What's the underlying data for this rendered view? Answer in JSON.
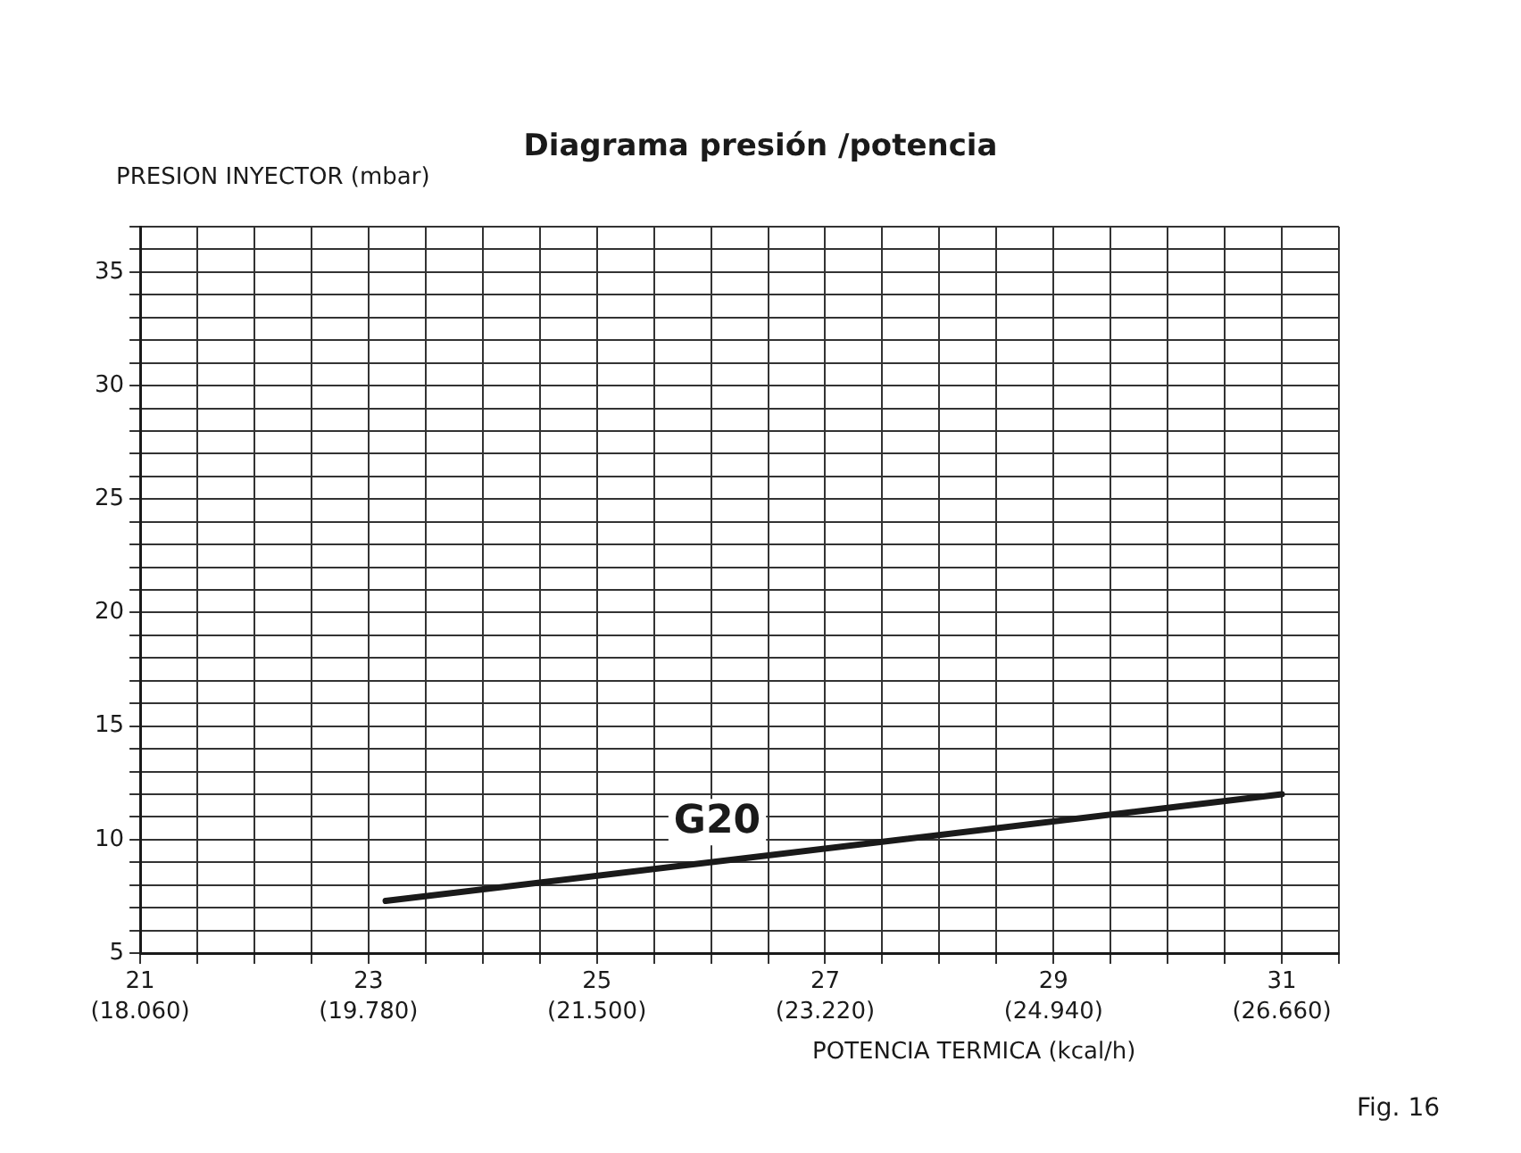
{
  "chart_data": {
    "type": "line",
    "title": "Diagrama presión /potencia",
    "ylabel": "PRESION INYECTOR (mbar)",
    "xlabel": "POTENCIA TERMICA (kcal/h)",
    "annotations": [
      "Fig. 16"
    ],
    "xlim": [
      21,
      31.5
    ],
    "xticks": [
      21,
      {
        "value": 21.5,
        "label": null
      },
      {
        "value": 22,
        "label": null
      },
      {
        "value": 22.5,
        "label": null
      },
      23,
      {
        "value": 23.5,
        "label": null
      },
      {
        "value": 24,
        "label": null
      },
      {
        "value": 24.5,
        "label": null
      },
      25,
      {
        "value": 25.5,
        "label": null
      },
      {
        "value": 26,
        "label": null
      },
      {
        "value": 26.5,
        "label": null
      },
      27,
      {
        "value": 27.5,
        "label": null
      },
      {
        "value": 28,
        "label": null
      },
      {
        "value": 28.5,
        "label": null
      },
      29,
      {
        "value": 29.5,
        "label": null
      },
      {
        "value": 30,
        "label": null
      },
      {
        "value": 30.5,
        "label": null
      },
      31,
      {
        "value": 31.5,
        "label": null
      }
    ],
    "x2lim": [
      18060,
      27090
    ],
    "x2ticks": [
      {
        "value": 18060,
        "label": "(18.060)"
      },
      {
        "value": 19780,
        "label": "(19.780)"
      },
      {
        "value": 21500,
        "label": "(21.500)"
      },
      {
        "value": 23220,
        "label": "(23.220)"
      },
      {
        "value": 24940,
        "label": "(24.940)"
      },
      {
        "value": 26660,
        "label": "(26.660)"
      }
    ],
    "ylim": [
      5,
      37
    ],
    "yticks": [
      5,
      {
        "value": 6,
        "label": null
      },
      {
        "value": 7,
        "label": null
      },
      {
        "value": 8,
        "label": null
      },
      {
        "value": 9,
        "label": null
      },
      10,
      {
        "value": 11,
        "label": null
      },
      {
        "value": 12,
        "label": null
      },
      {
        "value": 13,
        "label": null
      },
      {
        "value": 14,
        "label": null
      },
      15,
      {
        "value": 16,
        "label": null
      },
      {
        "value": 17,
        "label": null
      },
      {
        "value": 18,
        "label": null
      },
      {
        "value": 19,
        "label": null
      },
      20,
      {
        "value": 21,
        "label": null
      },
      {
        "value": 22,
        "label": null
      },
      {
        "value": 23,
        "label": null
      },
      {
        "value": 24,
        "label": null
      },
      25,
      {
        "value": 26,
        "label": null
      },
      {
        "value": 27,
        "label": null
      },
      {
        "value": 28,
        "label": null
      },
      {
        "value": 29,
        "label": null
      },
      30,
      {
        "value": 31,
        "label": null
      },
      {
        "value": 32,
        "label": null
      },
      {
        "value": 33,
        "label": null
      },
      {
        "value": 34,
        "label": null
      },
      35,
      {
        "value": 36,
        "label": null
      },
      {
        "value": 37,
        "label": null
      }
    ],
    "grid": true,
    "legend": false,
    "marker": "none",
    "line_style": "solid",
    "series": [
      {
        "name": "G20",
        "color": "#1a1a1a",
        "x": [
          23.15,
          31
        ],
        "values": [
          7.3,
          12
        ]
      }
    ]
  }
}
